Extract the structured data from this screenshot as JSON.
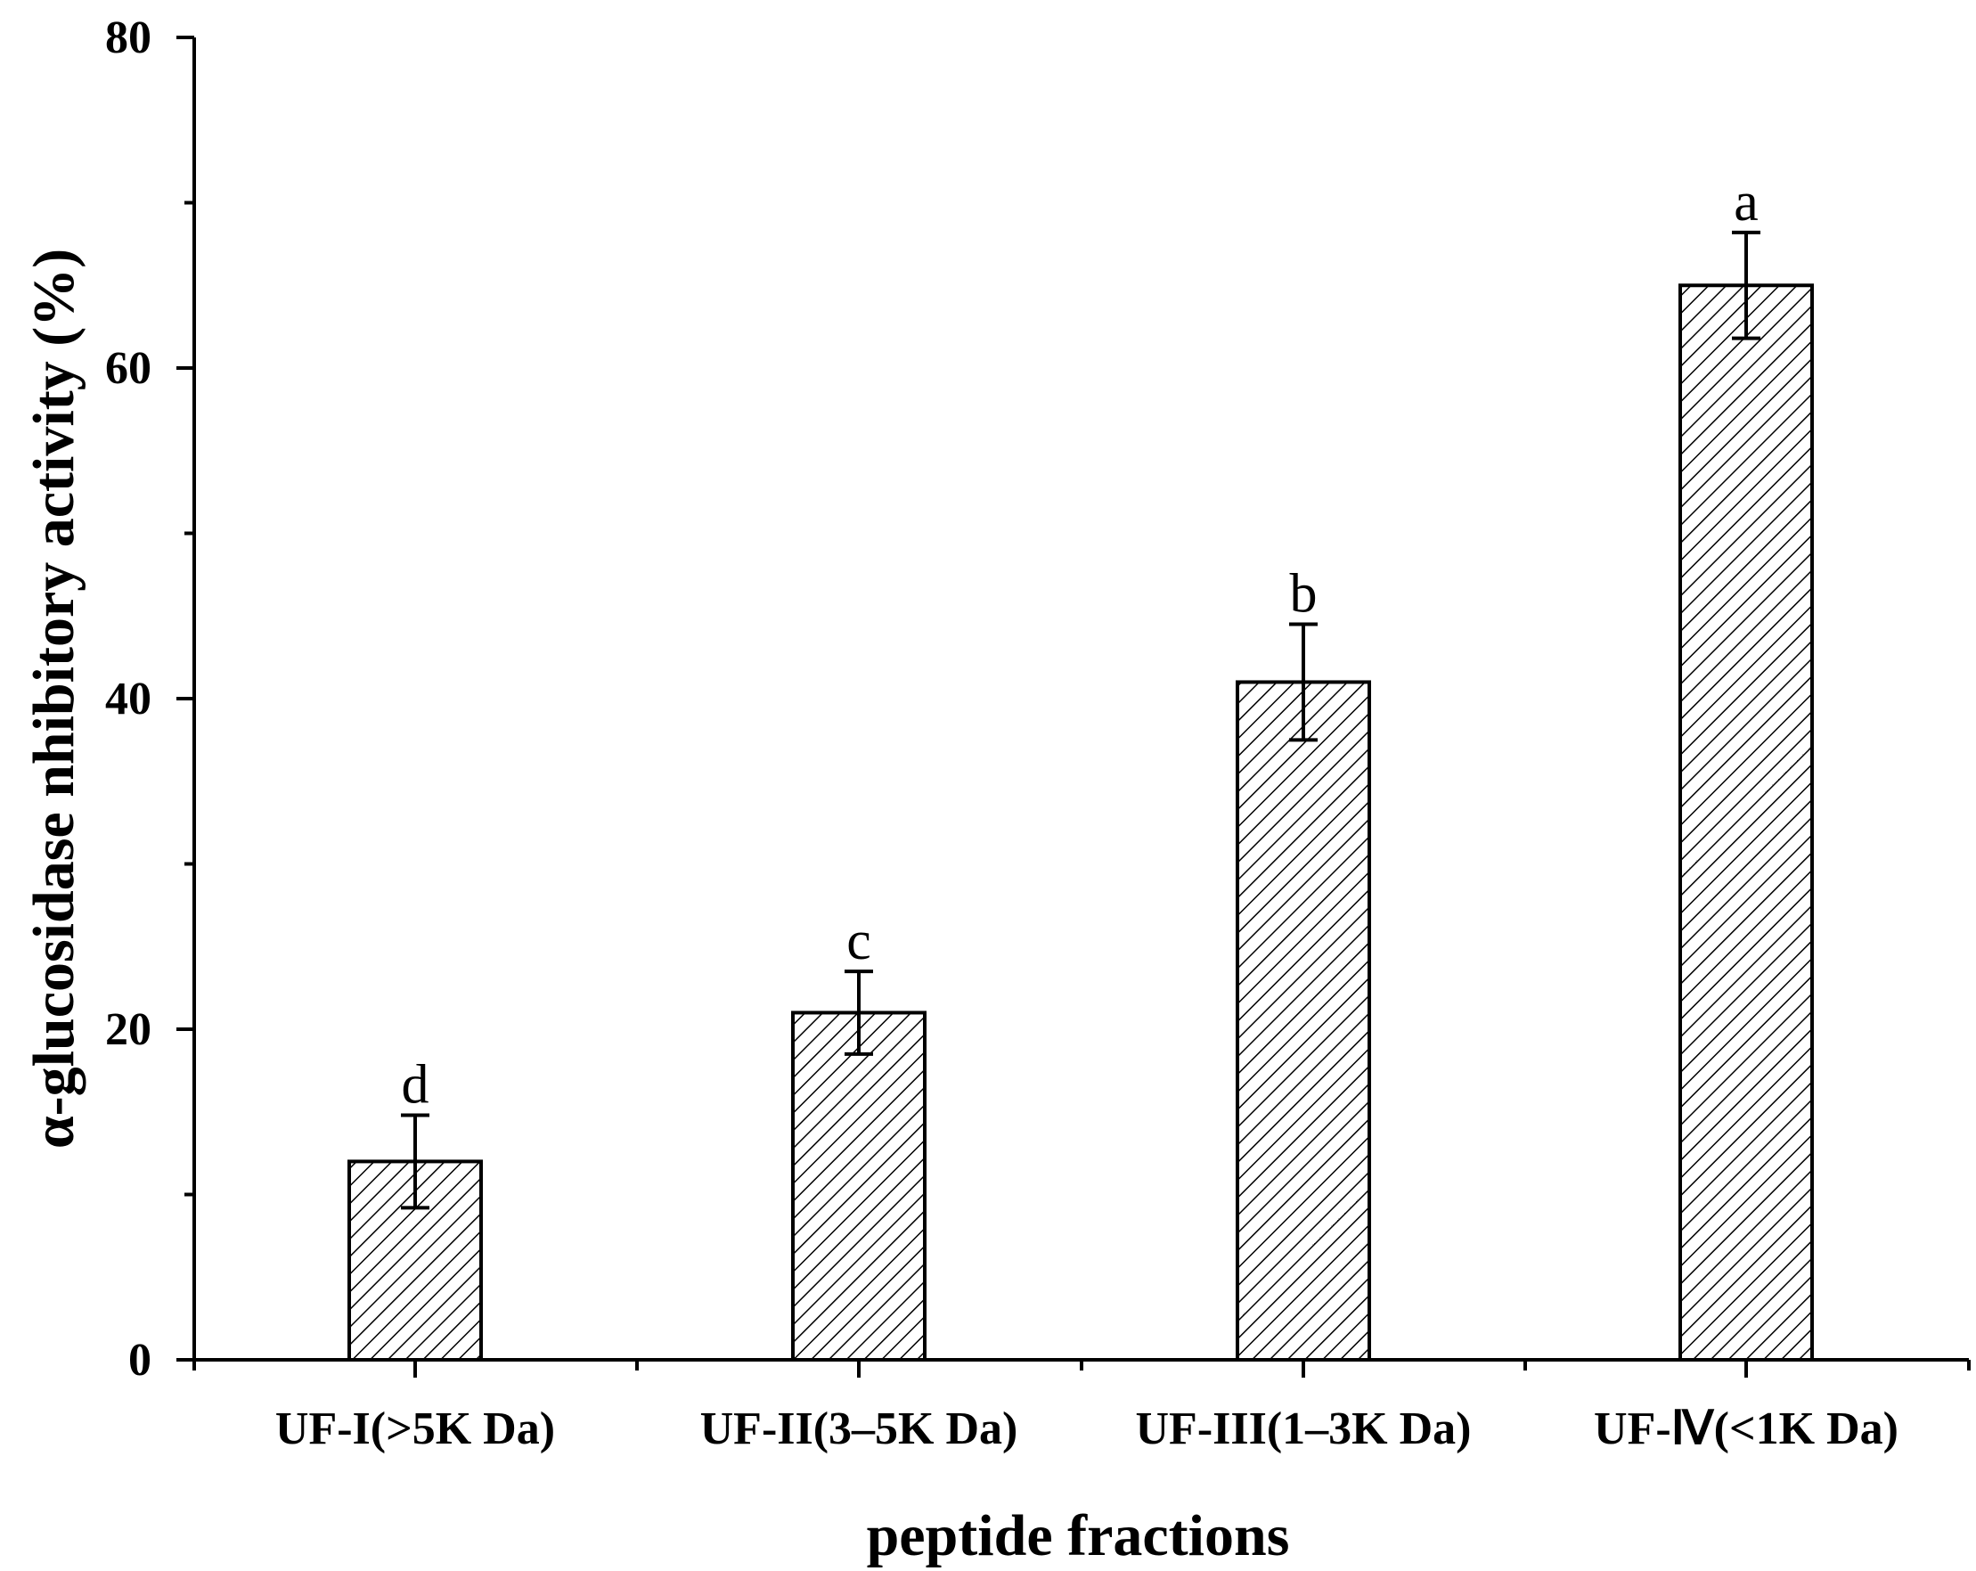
{
  "chart_data": {
    "type": "bar",
    "title": "",
    "xlabel": "peptide fractions",
    "ylabel": "α-glucosidase nhibitory activity (%)",
    "ylim": [
      0,
      80
    ],
    "yticks": [
      0,
      20,
      40,
      60,
      80
    ],
    "categories": [
      "UF-I(>5K Da)",
      "UF-II(3–5K Da)",
      "UF-III(1–3K Da)",
      "UF-Ⅳ(<1K Da)"
    ],
    "series": [
      {
        "values": [
          12.0,
          21.0,
          41.0,
          65.0
        ],
        "errors": [
          2.8,
          2.5,
          3.5,
          3.2
        ],
        "significance": [
          "d",
          "c",
          "b",
          "a"
        ]
      }
    ],
    "fill": "diagonal hatch",
    "grid": false,
    "legend": "none"
  }
}
